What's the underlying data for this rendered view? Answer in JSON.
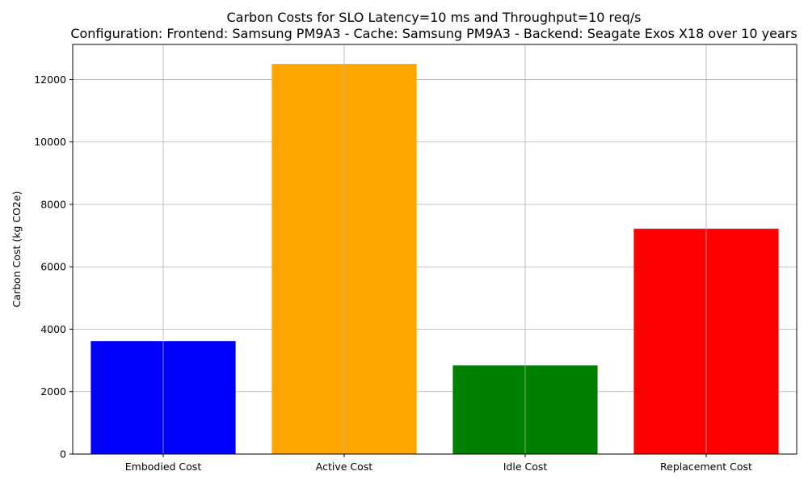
{
  "chart_data": {
    "type": "bar",
    "title": "Carbon Costs for SLO Latency=10 ms and Throughput=10 req/s",
    "subtitle": "Configuration: Frontend: Samsung PM9A3 - Cache: Samsung PM9A3 - Backend: Seagate Exos X18 over 10 years",
    "xlabel": "",
    "ylabel": "Carbon Cost (kg CO2e)",
    "categories": [
      "Embodied Cost",
      "Active Cost",
      "Idle Cost",
      "Replacement Cost"
    ],
    "values": [
      3620,
      12500,
      2840,
      7220
    ],
    "colors": [
      "#0000ff",
      "#ffa500",
      "#008000",
      "#ff0000"
    ],
    "ylim": [
      0,
      13125
    ],
    "yticks": [
      0,
      2000,
      4000,
      6000,
      8000,
      10000,
      12000
    ],
    "grid": true
  }
}
